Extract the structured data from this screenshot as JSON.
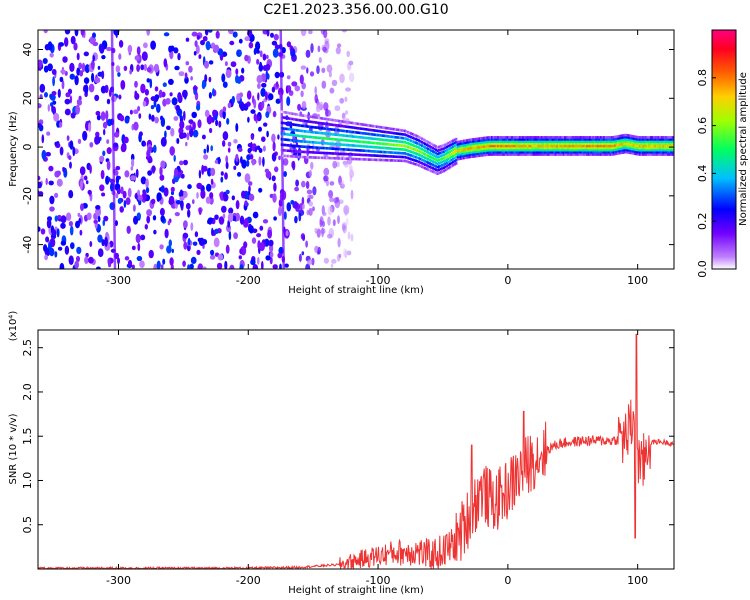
{
  "title": "C2E1.2023.356.00.00.G10",
  "chart_data": [
    {
      "type": "heatmap",
      "xlabel": "Height of straight line (km)",
      "ylabel": "Frequency (Hz)",
      "xlim": [
        -362,
        128
      ],
      "ylim": [
        -50,
        48
      ],
      "xticks": [
        -300,
        -200,
        -100,
        0,
        100
      ],
      "yticks": [
        -40,
        -20,
        0,
        20,
        40
      ],
      "colorbar": {
        "label": "Normalized spectral amplitude",
        "range": [
          0,
          1
        ],
        "ticks": [
          "0.0",
          "0.2",
          "0.4",
          "0.6",
          "0.8"
        ],
        "tick_values": [
          0.0,
          0.2,
          0.4,
          0.6,
          0.8
        ],
        "colormap": [
          "#ffffff",
          "#9400d3",
          "#4b00ff",
          "#0000ff",
          "#00e0ff",
          "#00ff00",
          "#ffff00",
          "#ff7f00",
          "#ff0000",
          "#ff0080"
        ]
      },
      "noise_region": {
        "x_from": -362,
        "x_to": -140,
        "amplitude": 0.3
      },
      "ridge": {
        "x": [
          -175,
          -160,
          -140,
          -120,
          -100,
          -80,
          -70,
          -55,
          -50,
          -40,
          -30,
          -15,
          0,
          20,
          50,
          80,
          90,
          100,
          128
        ],
        "freq": [
          6,
          5,
          4,
          3,
          2,
          1,
          -1,
          -5,
          -4,
          -1,
          0,
          1,
          1,
          1,
          1,
          1,
          2,
          1,
          1
        ],
        "amplitude": [
          0.35,
          0.45,
          0.5,
          0.5,
          0.55,
          0.6,
          0.6,
          0.5,
          0.55,
          0.7,
          0.75,
          0.8,
          0.8,
          0.75,
          0.78,
          0.8,
          0.7,
          0.75,
          0.75
        ]
      },
      "streak_lines": [
        -305,
        -175
      ]
    },
    {
      "type": "line",
      "xlabel": "Height of straight line (km)",
      "ylabel": "SNR (10 * v/v)",
      "y_multiplier": "(x10⁴)",
      "xlim": [
        -362,
        128
      ],
      "ylim": [
        0,
        2.7
      ],
      "xticks": [
        -300,
        -200,
        -100,
        0,
        100
      ],
      "yticks": [
        "0.5",
        "1.0",
        "1.5",
        "2.0",
        "2.5"
      ],
      "ytick_values": [
        0.5,
        1.0,
        1.5,
        2.0,
        2.5
      ],
      "series_color": "#ee3333",
      "x": [
        -362,
        -300,
        -250,
        -200,
        -160,
        -130,
        -110,
        -90,
        -70,
        -60,
        -50,
        -40,
        -30,
        -20,
        -15,
        -10,
        0,
        10,
        20,
        30,
        40,
        60,
        80,
        90,
        95,
        98,
        100,
        103,
        108,
        115,
        128
      ],
      "y": [
        0.01,
        0.01,
        0.01,
        0.01,
        0.02,
        0.05,
        0.12,
        0.18,
        0.2,
        0.15,
        0.2,
        0.3,
        0.6,
        0.9,
        0.8,
        0.75,
        0.9,
        1.1,
        1.25,
        1.35,
        1.42,
        1.45,
        1.45,
        1.48,
        1.6,
        1.9,
        1.3,
        1.1,
        1.42,
        1.44,
        1.42
      ],
      "peaks": [
        {
          "x": 12,
          "y": 1.78
        },
        {
          "x": 99,
          "y": 2.65
        },
        {
          "x": 98,
          "y": 0.35
        },
        {
          "x": -28,
          "y": 1.4
        }
      ]
    }
  ]
}
